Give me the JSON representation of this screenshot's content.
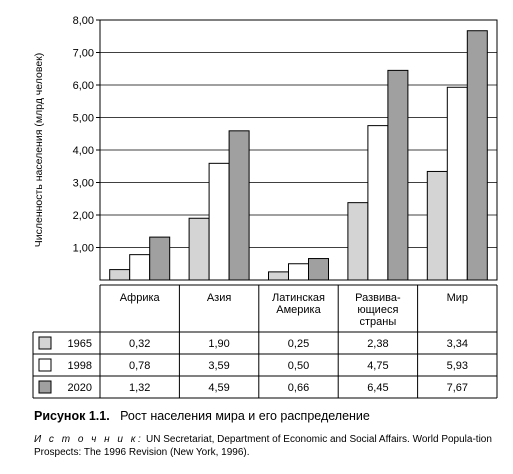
{
  "chart_data": {
    "type": "bar",
    "ylabel": "Численность населения (млрд человек)",
    "ylim": [
      0,
      8
    ],
    "yticks": [
      "1,00",
      "2,00",
      "3,00",
      "4,00",
      "5,00",
      "6,00",
      "7,00",
      "8,00"
    ],
    "grid": true,
    "categories": [
      "Африка",
      "Азия",
      "Латинская\nАмерика",
      "Развива-\nющиеся\nстраны",
      "Мир"
    ],
    "series": [
      {
        "name": "1965",
        "color": "#d4d4d4",
        "values": [
          0.32,
          1.9,
          0.25,
          2.38,
          3.34
        ],
        "labels": [
          "0,32",
          "1,90",
          "0,25",
          "2,38",
          "3,34"
        ]
      },
      {
        "name": "1998",
        "color": "#ffffff",
        "values": [
          0.78,
          3.59,
          0.5,
          4.75,
          5.93
        ],
        "labels": [
          "0,78",
          "3,59",
          "0,50",
          "4,75",
          "5,93"
        ]
      },
      {
        "name": "2020",
        "color": "#a0a0a0",
        "values": [
          1.32,
          4.59,
          0.66,
          6.45,
          7.67
        ],
        "labels": [
          "1,32",
          "4,59",
          "0,66",
          "6,45",
          "7,67"
        ]
      }
    ]
  },
  "caption": {
    "number": "Рисунок 1.1.",
    "text": "Рост населения мира и его распределение"
  },
  "source": {
    "label": "И с т о ч н и к:",
    "text": "UN Secretariat, Department of Economic and Social Affairs. World Popula-tion Prospects: The 1996 Revision (New York, 1996)."
  }
}
